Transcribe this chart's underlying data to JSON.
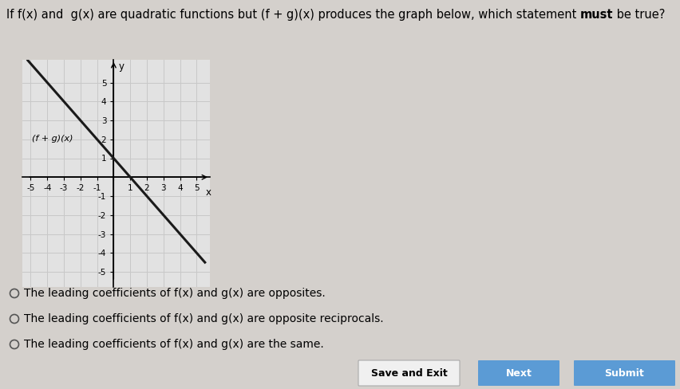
{
  "title_parts": [
    {
      "text": "If f(x) and  g(x) are quadratic functions but (f + g)(x) produces the graph below, which statement ",
      "bold": false
    },
    {
      "text": "must",
      "bold": true
    },
    {
      "text": " be true?",
      "bold": false
    }
  ],
  "slope": -1,
  "y_intercept": 1,
  "xlim": [
    -5.5,
    5.8
  ],
  "ylim": [
    -5.8,
    6.2
  ],
  "line_color": "#1a1a1a",
  "line_label": "(f + g)(x)",
  "grid_color": "#c8c8c8",
  "graph_bg": "#e2e2e2",
  "outer_bg": "#d4d0cc",
  "choices": [
    "The leading coefficients of f(x) and g(x) are opposites.",
    "The leading coefficients of f(x) and g(x) are opposite reciprocals.",
    "The leading coefficients of f(x) and g(x) are the same."
  ],
  "button_labels": [
    "Save and Exit",
    "Next",
    "Submit"
  ],
  "button_colors": [
    "#f0f0f0",
    "#5b9bd5",
    "#5b9bd5"
  ],
  "button_text_colors": [
    "#000000",
    "#ffffff",
    "#ffffff"
  ],
  "axis_label_x": "x",
  "axis_label_y": "y",
  "title_fontsize": 10.5,
  "choice_fontsize": 10,
  "tick_fontsize": 7.5
}
